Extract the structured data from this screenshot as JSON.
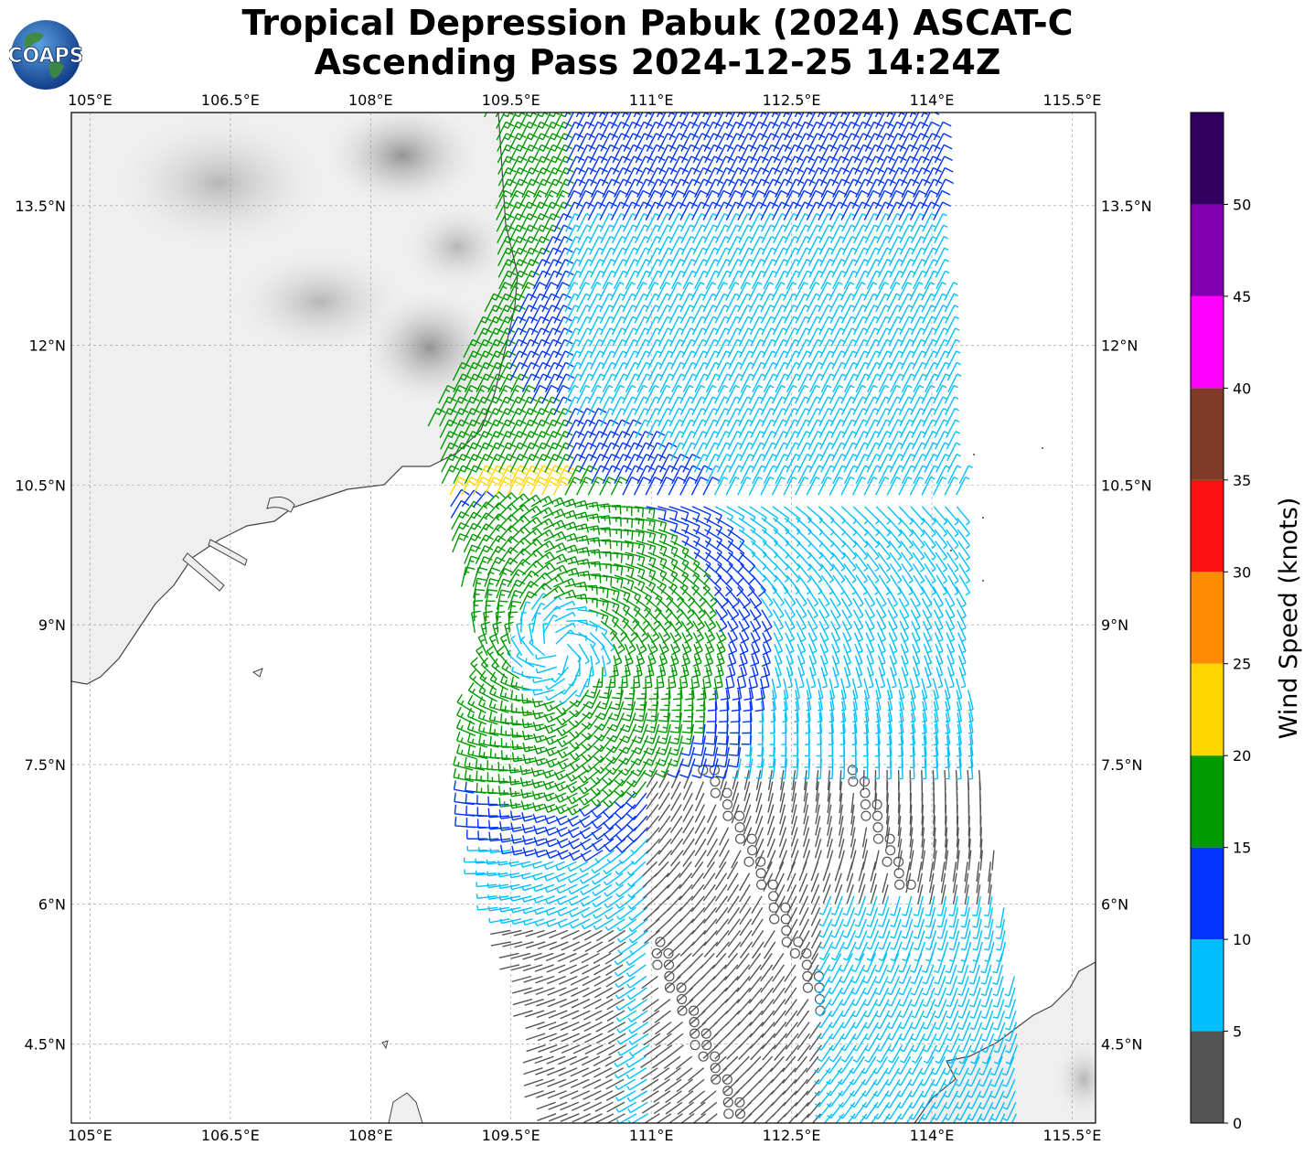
{
  "title": {
    "line1": "Tropical Depression Pabuk (2024) ASCAT-C",
    "line2": "Ascending Pass 2024-12-25 14:24Z"
  },
  "logo": {
    "text": "COAPS",
    "icon": "globe-icon"
  },
  "map": {
    "lon_range": [
      104.8,
      115.75
    ],
    "lat_range": [
      3.65,
      14.5
    ],
    "lon_ticks": [
      "105°E",
      "106.5°E",
      "108°E",
      "109.5°E",
      "111°E",
      "112.5°E",
      "114°E",
      "115.5°E"
    ],
    "lat_ticks": [
      "13.5°N",
      "12°N",
      "10.5°N",
      "9°N",
      "7.5°N",
      "6°N",
      "4.5°N"
    ],
    "gridlines": true,
    "land_shading": "grayscale terrain",
    "coastline_color": "#444444"
  },
  "colorbar": {
    "label": "Wind Speed (knots)",
    "ticks": [
      "0",
      "5",
      "10",
      "15",
      "20",
      "25",
      "30",
      "35",
      "40",
      "45",
      "50"
    ],
    "bins": [
      {
        "min": 0,
        "max": 5,
        "color": "#555555"
      },
      {
        "min": 5,
        "max": 10,
        "color": "#00bfff"
      },
      {
        "min": 10,
        "max": 15,
        "color": "#0033ff"
      },
      {
        "min": 15,
        "max": 20,
        "color": "#009900"
      },
      {
        "min": 20,
        "max": 25,
        "color": "#ffd700"
      },
      {
        "min": 25,
        "max": 30,
        "color": "#ff8c00"
      },
      {
        "min": 30,
        "max": 35,
        "color": "#ff1111"
      },
      {
        "min": 35,
        "max": 40,
        "color": "#803c28"
      },
      {
        "min": 40,
        "max": 45,
        "color": "#ff00ff"
      },
      {
        "min": 45,
        "max": 50,
        "color": "#8000b0"
      },
      {
        "min": 50,
        "max": 55,
        "color": "#300060"
      }
    ]
  },
  "wind_field": {
    "center": {
      "lon": 110.0,
      "lat": 8.75
    },
    "swath": "ASCAT-C ascending pass",
    "calm_symbol": "circle"
  }
}
